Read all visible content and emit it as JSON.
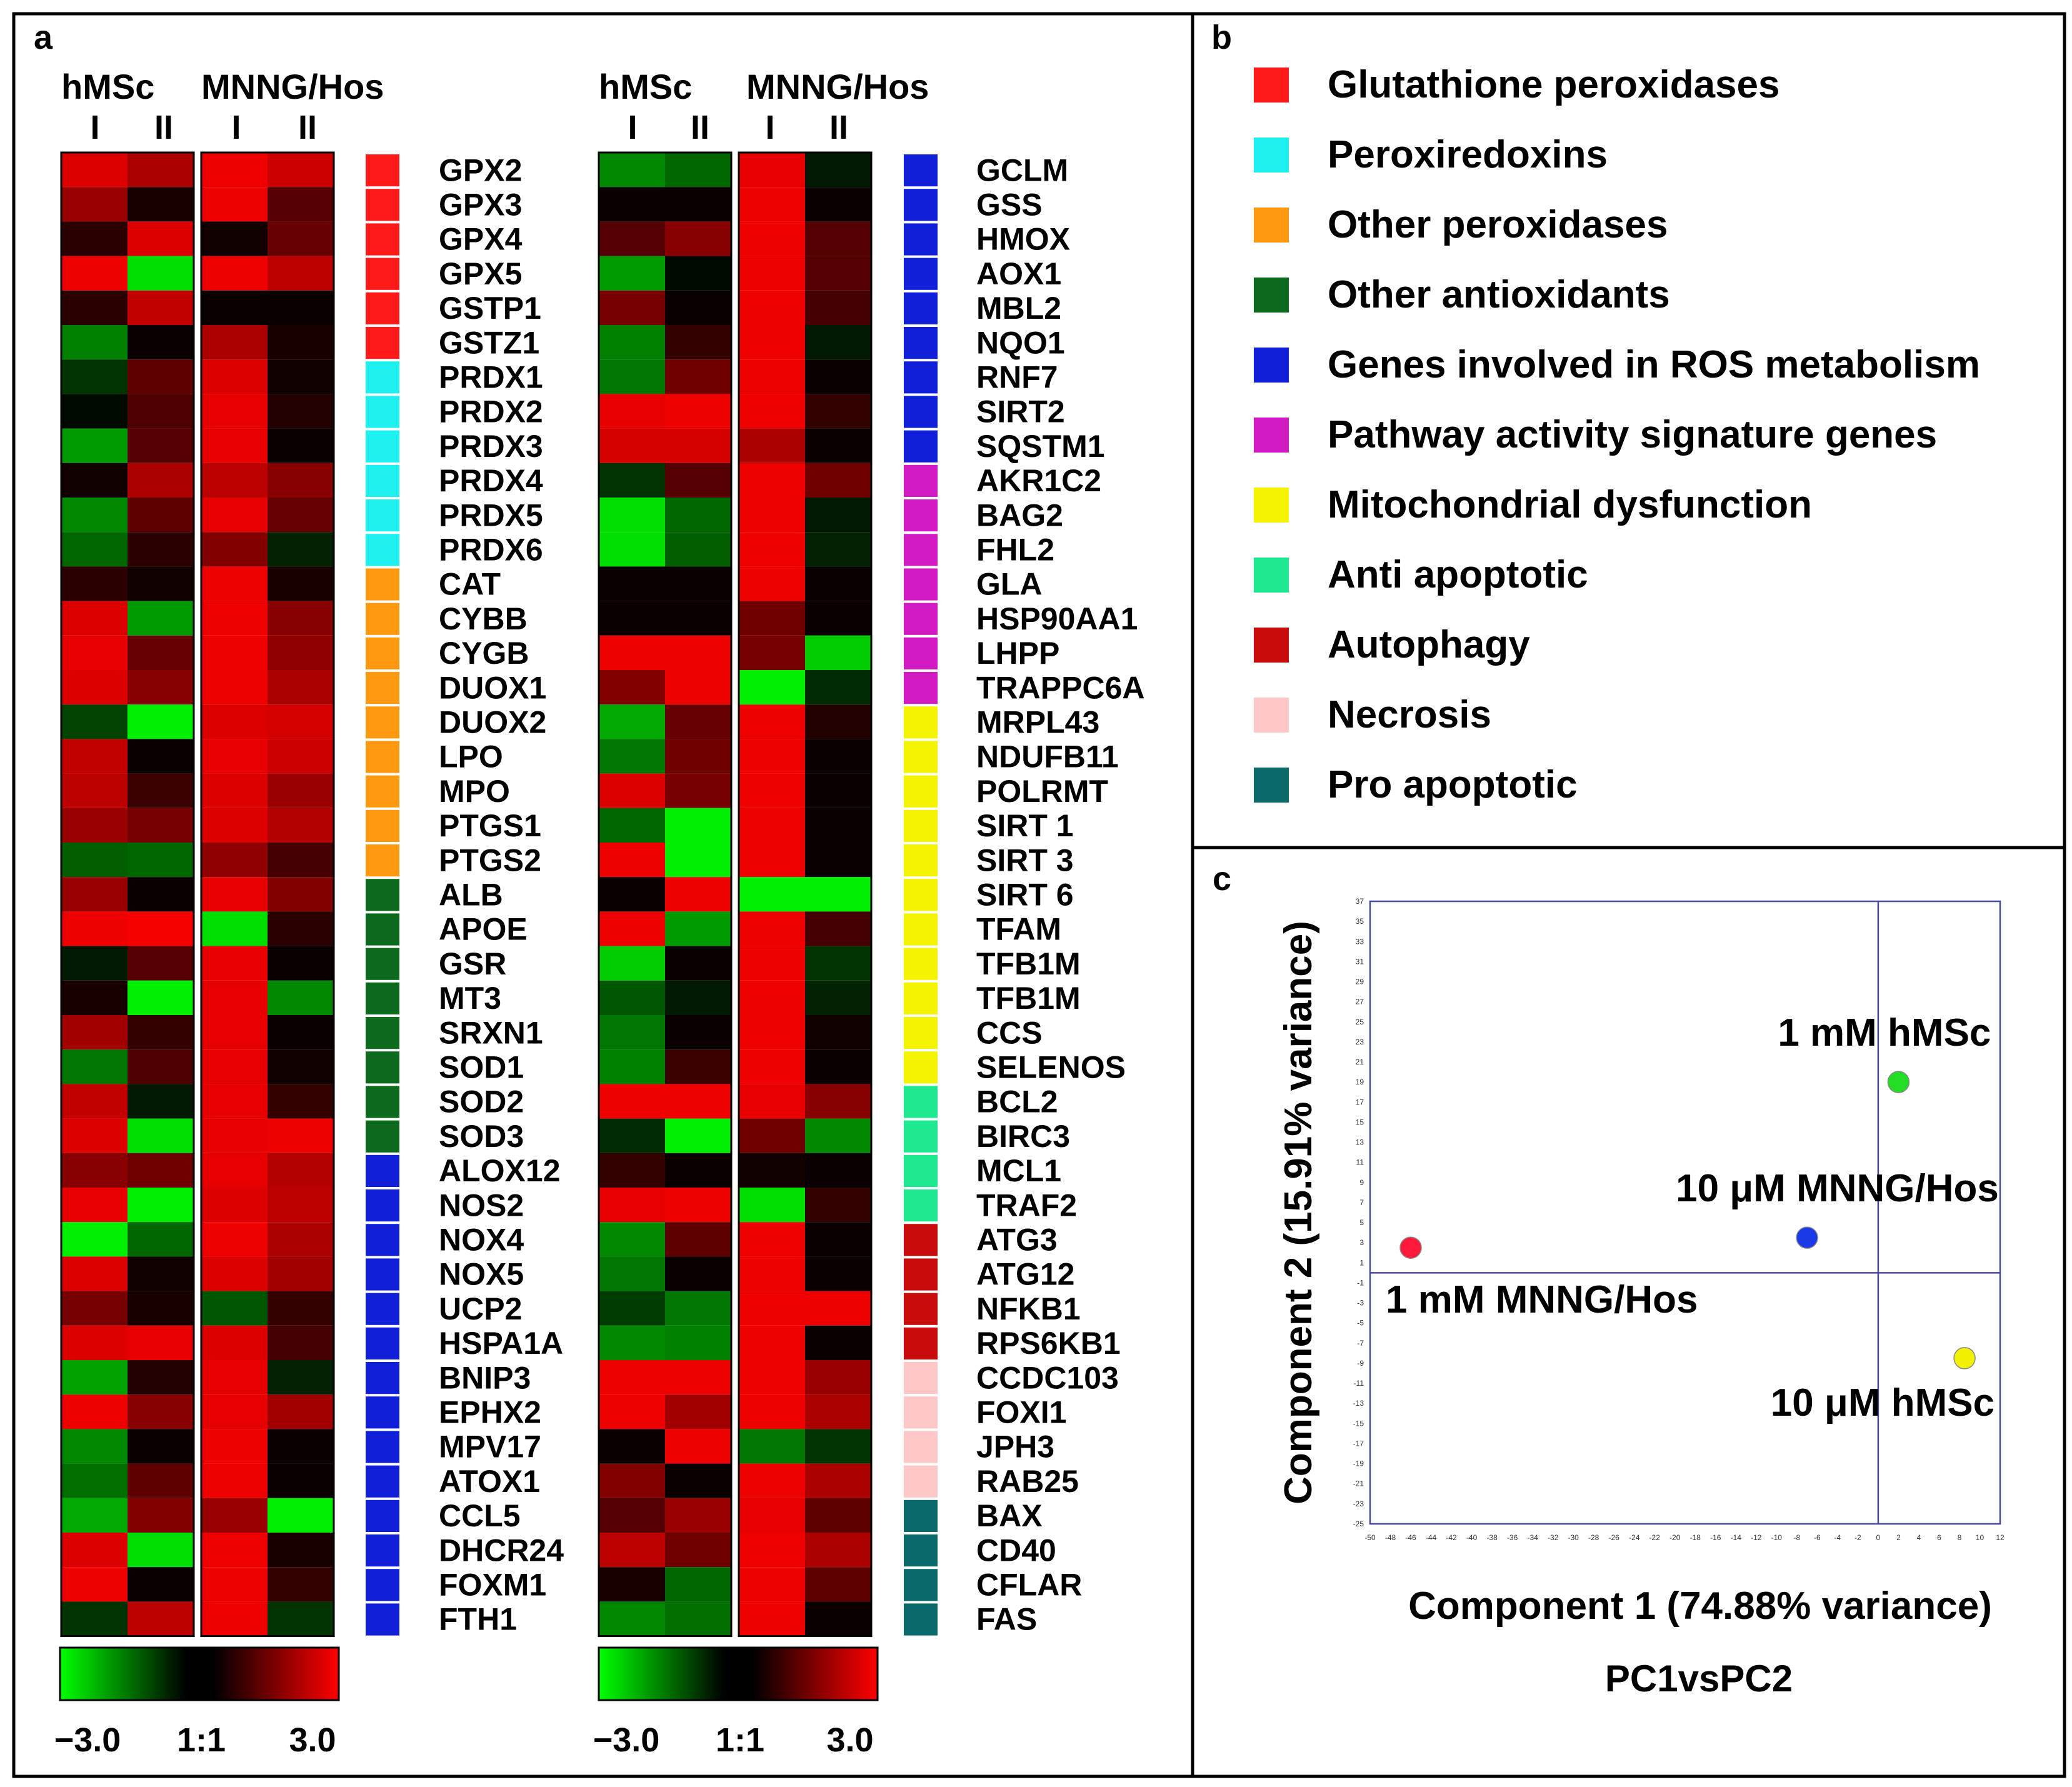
{
  "panels": {
    "a": "a",
    "b": "b",
    "c": "c"
  },
  "heatmap": {
    "group_labels": [
      "hMSc",
      "MNNG/Hos"
    ],
    "replicate_labels": [
      "I",
      "II"
    ],
    "color_scale": {
      "min_label": "−3.0",
      "mid_label": "1:1",
      "max_label": "3.0",
      "min": -3.0,
      "max": 3.0,
      "low_color": "#00ff00",
      "mid_color": "#000000",
      "high_color": "#ff0000"
    },
    "left_genes": [
      "GPX2",
      "GPX3",
      "GPX4",
      "GPX5",
      "GSTP1",
      "GSTZ1",
      "PRDX1",
      "PRDX2",
      "PRDX3",
      "PRDX4",
      "PRDX5",
      "PRDX6",
      "CAT",
      "CYBB",
      "CYGB",
      "DUOX1",
      "DUOX2",
      "LPO",
      "MPO",
      "PTGS1",
      "PTGS2",
      "ALB",
      "APOE",
      "GSR",
      "MT3",
      "SRXN1",
      "SOD1",
      "SOD2",
      "SOD3",
      "ALOX12",
      "NOS2",
      "NOX4",
      "NOX5",
      "UCP2",
      "HSPA1A",
      "BNIP3",
      "EPHX2",
      "MPV17",
      "ATOX1",
      "CCL5",
      "DHCR24",
      "FOXM1",
      "FTH1"
    ],
    "right_genes": [
      "GCLM",
      "GSS",
      "HMOX",
      "AOX1",
      "MBL2",
      "NQO1",
      "RNF7",
      "SIRT2",
      "SQSTM1",
      "AKR1C2",
      "BAG2",
      "FHL2",
      "GLA",
      "HSP90AA1",
      "LHPP",
      "TRAPPC6A",
      "MRPL43",
      "NDUFB11",
      "POLRMT",
      "SIRT 1",
      "SIRT 3",
      "SIRT 6",
      "TFAM",
      "TFB1M",
      "TFB1M",
      "CCS",
      "SELENOS",
      "BCL2",
      "BIRC3",
      "MCL1",
      "TRAF2",
      "ATG3",
      "ATG12",
      "NFKB1",
      "RPS6KB1",
      "CCDC103",
      "FOXI1",
      "JPH3",
      "RAB25",
      "BAX",
      "CD40",
      "CFLAR",
      "FAS"
    ],
    "left_categories": [
      0,
      0,
      0,
      0,
      0,
      0,
      1,
      1,
      1,
      1,
      1,
      1,
      2,
      2,
      2,
      2,
      2,
      2,
      2,
      2,
      2,
      3,
      3,
      3,
      3,
      3,
      3,
      3,
      3,
      4,
      4,
      4,
      4,
      4,
      4,
      4,
      4,
      4,
      4,
      4,
      4,
      4,
      4
    ],
    "right_categories": [
      4,
      4,
      4,
      4,
      4,
      4,
      4,
      4,
      4,
      5,
      5,
      5,
      5,
      5,
      5,
      5,
      6,
      6,
      6,
      6,
      6,
      6,
      6,
      6,
      6,
      6,
      6,
      7,
      7,
      7,
      7,
      8,
      8,
      8,
      8,
      9,
      9,
      9,
      9,
      10,
      10,
      10,
      10
    ],
    "left_values": [
      [
        2.6,
        2.0,
        2.8,
        2.4
      ],
      [
        1.8,
        0.3,
        2.8,
        1.0
      ],
      [
        0.5,
        2.6,
        0.2,
        1.2
      ],
      [
        2.8,
        -2.6,
        2.8,
        2.2
      ],
      [
        0.5,
        2.3,
        0.1,
        0.1
      ],
      [
        -1.5,
        0.1,
        2.0,
        0.3
      ],
      [
        -0.6,
        1.1,
        2.6,
        0.2
      ],
      [
        -0.1,
        0.9,
        2.7,
        0.4
      ],
      [
        -1.8,
        1.0,
        2.7,
        0.1
      ],
      [
        0.2,
        2.0,
        2.2,
        1.6
      ],
      [
        -1.6,
        1.1,
        2.7,
        1.2
      ],
      [
        -1.2,
        0.5,
        1.5,
        -0.4
      ],
      [
        0.5,
        0.2,
        2.8,
        0.3
      ],
      [
        2.6,
        -1.8,
        2.8,
        1.6
      ],
      [
        2.7,
        1.2,
        2.8,
        1.7
      ],
      [
        2.6,
        1.6,
        2.8,
        2.0
      ],
      [
        -0.8,
        -2.8,
        2.6,
        2.5
      ],
      [
        2.3,
        0.1,
        2.7,
        2.4
      ],
      [
        2.2,
        0.7,
        2.6,
        1.8
      ],
      [
        1.8,
        1.4,
        2.6,
        2.1
      ],
      [
        -1.1,
        -1.2,
        1.7,
        0.8
      ],
      [
        1.8,
        0.1,
        2.7,
        1.5
      ],
      [
        2.8,
        2.9,
        -2.6,
        0.5
      ],
      [
        -0.3,
        1.0,
        2.7,
        0.1
      ],
      [
        0.3,
        -2.8,
        2.7,
        -1.6
      ],
      [
        1.9,
        0.6,
        2.7,
        0.1
      ],
      [
        -1.4,
        0.9,
        2.7,
        0.2
      ],
      [
        2.3,
        -0.3,
        2.7,
        0.6
      ],
      [
        2.6,
        -2.6,
        2.7,
        2.8
      ],
      [
        1.6,
        1.3,
        2.7,
        2.1
      ],
      [
        2.7,
        -2.8,
        2.6,
        2.2
      ],
      [
        -2.8,
        -1.2,
        2.8,
        2.0
      ],
      [
        2.6,
        0.2,
        2.6,
        1.9
      ],
      [
        1.4,
        0.3,
        -1.0,
        0.6
      ],
      [
        2.6,
        2.7,
        2.6,
        0.8
      ],
      [
        -1.9,
        0.4,
        2.7,
        -0.4
      ],
      [
        2.8,
        1.6,
        2.7,
        1.9
      ],
      [
        -1.6,
        0.1,
        2.8,
        0.1
      ],
      [
        -1.3,
        1.1,
        2.8,
        0.1
      ],
      [
        -2.0,
        1.5,
        1.8,
        -2.8
      ],
      [
        2.6,
        -2.6,
        2.8,
        0.3
      ],
      [
        2.8,
        0.1,
        2.8,
        0.6
      ],
      [
        -0.6,
        2.2,
        2.8,
        -0.6
      ]
    ],
    "right_values": [
      [
        -1.6,
        -1.2,
        2.7,
        -0.3
      ],
      [
        0.1,
        0.1,
        2.8,
        0.1
      ],
      [
        1.0,
        1.6,
        2.8,
        1.0
      ],
      [
        -1.8,
        -0.1,
        2.8,
        1.0
      ],
      [
        1.4,
        0.1,
        2.8,
        0.8
      ],
      [
        -1.5,
        0.6,
        2.8,
        -0.3
      ],
      [
        -1.4,
        1.3,
        2.8,
        0.1
      ],
      [
        2.7,
        2.8,
        2.8,
        0.6
      ],
      [
        2.5,
        2.5,
        2.0,
        0.1
      ],
      [
        -0.6,
        1.0,
        2.8,
        1.3
      ],
      [
        -2.6,
        -1.2,
        2.8,
        -0.3
      ],
      [
        -2.6,
        -1.1,
        2.8,
        -0.4
      ],
      [
        0.1,
        0.1,
        2.8,
        0.1
      ],
      [
        0.1,
        0.1,
        1.3,
        0.1
      ],
      [
        2.8,
        2.8,
        1.4,
        -2.4
      ],
      [
        1.5,
        2.8,
        -2.8,
        -0.5
      ],
      [
        -2.0,
        1.2,
        2.8,
        0.4
      ],
      [
        -1.4,
        1.3,
        2.8,
        0.1
      ],
      [
        2.6,
        1.4,
        2.8,
        0.1
      ],
      [
        -1.2,
        -2.8,
        2.8,
        0.1
      ],
      [
        2.8,
        -2.8,
        2.8,
        0.1
      ],
      [
        0.1,
        2.8,
        -2.8,
        -2.8
      ],
      [
        2.8,
        -1.8,
        2.8,
        0.8
      ],
      [
        -2.4,
        0.1,
        2.8,
        -0.6
      ],
      [
        -1.0,
        -0.3,
        2.8,
        -0.4
      ],
      [
        -1.4,
        0.1,
        2.8,
        0.2
      ],
      [
        -1.5,
        0.7,
        2.8,
        0.1
      ],
      [
        2.8,
        2.8,
        2.7,
        1.6
      ],
      [
        -0.5,
        -2.8,
        1.3,
        -1.6
      ],
      [
        0.6,
        0.1,
        0.2,
        0.1
      ],
      [
        2.7,
        2.8,
        -2.6,
        0.6
      ],
      [
        -1.6,
        1.1,
        2.8,
        0.1
      ],
      [
        -1.4,
        0.1,
        2.8,
        0.1
      ],
      [
        -0.7,
        -1.4,
        2.8,
        2.8
      ],
      [
        -1.6,
        -1.5,
        2.8,
        0.1
      ],
      [
        2.8,
        2.8,
        2.8,
        1.8
      ],
      [
        2.8,
        1.9,
        2.8,
        2.0
      ],
      [
        0.1,
        2.8,
        -1.4,
        -0.6
      ],
      [
        1.5,
        0.1,
        2.8,
        2.0
      ],
      [
        1.0,
        1.8,
        2.7,
        1.1
      ],
      [
        2.2,
        1.3,
        2.8,
        2.0
      ],
      [
        0.3,
        -1.2,
        2.8,
        1.1
      ],
      [
        -1.6,
        -1.3,
        2.8,
        0.1
      ]
    ]
  },
  "legend": {
    "items": [
      {
        "label": "Glutathione peroxidases",
        "color": "#ff1a1a"
      },
      {
        "label": "Peroxiredoxins",
        "color": "#1ef0f0"
      },
      {
        "label": "Other peroxidases",
        "color": "#ff9a10"
      },
      {
        "label": "Other antioxidants",
        "color": "#0c6a1c"
      },
      {
        "label": "Genes involved in ROS metabolism",
        "color": "#1020d8"
      },
      {
        "label": "Pathway activity signature genes",
        "color": "#d21ac2"
      },
      {
        "label": "Mitochondrial dysfunction",
        "color": "#f4f400"
      },
      {
        "label": "Anti apoptotic",
        "color": "#1ee890"
      },
      {
        "label": "Autophagy",
        "color": "#c80c0c"
      },
      {
        "label": "Necrosis",
        "color": "#ffc8c8"
      },
      {
        "label": "Pro apoptotic",
        "color": "#0a6a6a"
      }
    ]
  },
  "chart_data": [
    {
      "type": "heatmap",
      "title": "",
      "columns": [
        "hMSc I",
        "hMSc II",
        "MNNG/Hos I",
        "MNNG/Hos II"
      ],
      "rows_left": "see heatmap.left_genes",
      "rows_right": "see heatmap.right_genes",
      "range": [
        -3.0,
        3.0
      ]
    },
    {
      "type": "scatter",
      "title": "PC1vsPC2",
      "xlabel": "Component 1 (74.88% variance)",
      "ylabel": "Component 2 (15.91% variance)",
      "xlim": [
        -50,
        12
      ],
      "ylim": [
        -25,
        37
      ],
      "xticks": [
        -50,
        -48,
        -46,
        -44,
        -42,
        -40,
        -38,
        -36,
        -34,
        -32,
        -30,
        -28,
        -26,
        -24,
        -22,
        -20,
        -18,
        -16,
        -14,
        -12,
        -10,
        -8,
        -6,
        -4,
        -2,
        0,
        2,
        4,
        6,
        8,
        10,
        12
      ],
      "yticks": [
        37,
        35,
        33,
        31,
        29,
        27,
        25,
        23,
        21,
        19,
        17,
        15,
        13,
        11,
        9,
        7,
        5,
        3,
        1,
        -1,
        -3,
        -5,
        -7,
        -9,
        -11,
        -13,
        -15,
        -17,
        -19,
        -21,
        -23,
        -25
      ],
      "points": [
        {
          "label": "1 mM MNNG/Hos",
          "x": -46,
          "y": 2.5,
          "color": "#ff1a3a"
        },
        {
          "label": "10 μM MNNG/Hos",
          "x": -7,
          "y": 3.5,
          "color": "#1a3ae8"
        },
        {
          "label": "1 mM hMSc",
          "x": 2,
          "y": 19,
          "color": "#22dd22"
        },
        {
          "label": "10 μM hMSc",
          "x": 8.5,
          "y": -8.5,
          "color": "#f2f200"
        }
      ]
    }
  ]
}
